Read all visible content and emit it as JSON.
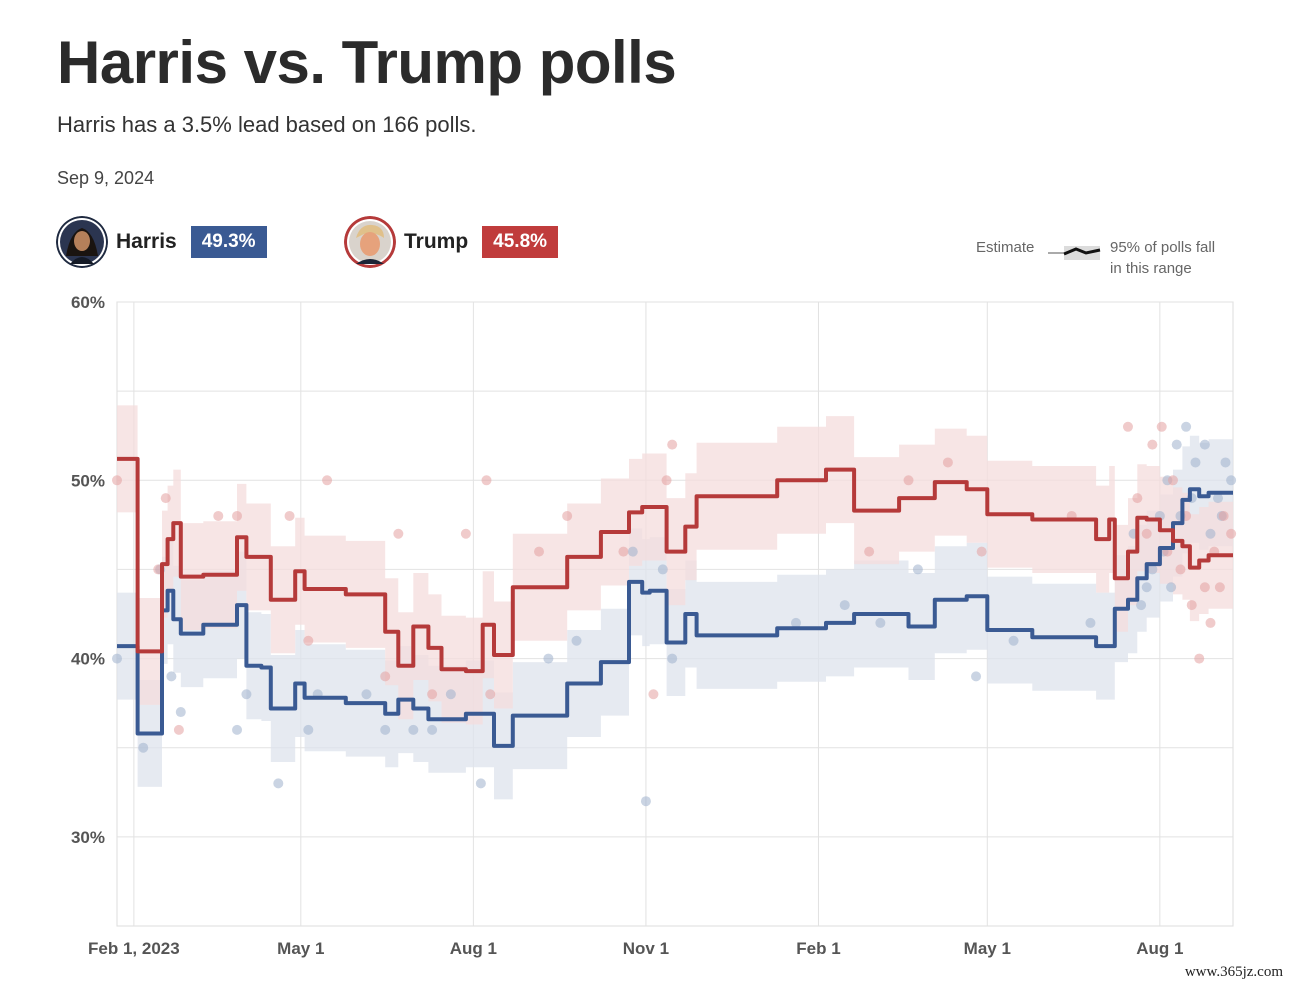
{
  "header": {
    "title": "Harris vs. Trump polls",
    "subtitle": "Harris has a 3.5% lead based on 166 polls.",
    "date": "Sep 9, 2024"
  },
  "candidates": [
    {
      "name": "Harris",
      "value": "49.3%",
      "color": "#3a5a93"
    },
    {
      "name": "Trump",
      "value": "45.8%",
      "color": "#b53a3a"
    }
  ],
  "legend": {
    "estimate_label": "Estimate",
    "range_label_1": "95% of polls fall",
    "range_label_2": "in this range"
  },
  "watermark": "www.365jz.com",
  "chart_data": {
    "type": "line",
    "title": "Harris vs. Trump polls",
    "ylim": [
      25,
      60
    ],
    "yticks": [
      30,
      40,
      50,
      60
    ],
    "ytick_labels": [
      "30%",
      "40%",
      "50%",
      "60%"
    ],
    "xlim": [
      "2023-01-23",
      "2024-09-09"
    ],
    "xticks": [
      "2023-02-01",
      "2023-05-01",
      "2023-08-01",
      "2023-11-01",
      "2024-02-01",
      "2024-05-01",
      "2024-08-01"
    ],
    "xtick_labels": [
      "Feb 1, 2023",
      "May 1",
      "Aug 1",
      "Nov 1",
      "Feb 1",
      "May 1",
      "Aug 1"
    ],
    "grid": true,
    "series": [
      {
        "name": "Harris",
        "color": "#3a5a93",
        "band_color": "#dde3ec",
        "points": [
          [
            "2023-01-23",
            40.7
          ],
          [
            "2023-01-31",
            40.7
          ],
          [
            "2023-02-03",
            35.8
          ],
          [
            "2023-02-12",
            35.8
          ],
          [
            "2023-02-16",
            42.7
          ],
          [
            "2023-02-19",
            43.8
          ],
          [
            "2023-02-22",
            42.2
          ],
          [
            "2023-02-26",
            41.4
          ],
          [
            "2023-03-10",
            41.9
          ],
          [
            "2023-03-20",
            41.9
          ],
          [
            "2023-03-28",
            43.0
          ],
          [
            "2023-04-02",
            39.6
          ],
          [
            "2023-04-10",
            39.5
          ],
          [
            "2023-04-15",
            37.2
          ],
          [
            "2023-04-25",
            37.2
          ],
          [
            "2023-04-28",
            38.6
          ],
          [
            "2023-05-03",
            37.8
          ],
          [
            "2023-05-20",
            37.8
          ],
          [
            "2023-05-25",
            37.5
          ],
          [
            "2023-06-10",
            37.5
          ],
          [
            "2023-06-15",
            36.9
          ],
          [
            "2023-06-22",
            37.7
          ],
          [
            "2023-06-30",
            37.2
          ],
          [
            "2023-07-08",
            36.6
          ],
          [
            "2023-07-15",
            36.6
          ],
          [
            "2023-07-28",
            36.9
          ],
          [
            "2023-08-06",
            36.9
          ],
          [
            "2023-08-12",
            35.1
          ],
          [
            "2023-08-20",
            35.1
          ],
          [
            "2023-08-22",
            36.8
          ],
          [
            "2023-09-15",
            36.8
          ],
          [
            "2023-09-20",
            38.6
          ],
          [
            "2023-09-28",
            38.6
          ],
          [
            "2023-10-08",
            39.8
          ],
          [
            "2023-10-20",
            39.8
          ],
          [
            "2023-10-23",
            44.3
          ],
          [
            "2023-10-30",
            43.7
          ],
          [
            "2023-11-03",
            43.8
          ],
          [
            "2023-11-08",
            43.8
          ],
          [
            "2023-11-12",
            40.9
          ],
          [
            "2023-11-18",
            40.9
          ],
          [
            "2023-11-22",
            42.5
          ],
          [
            "2023-11-28",
            41.3
          ],
          [
            "2024-01-10",
            41.7
          ],
          [
            "2024-02-01",
            41.7
          ],
          [
            "2024-02-05",
            42.0
          ],
          [
            "2024-02-15",
            42.0
          ],
          [
            "2024-02-20",
            42.5
          ],
          [
            "2024-03-10",
            42.5
          ],
          [
            "2024-03-15",
            42.5
          ],
          [
            "2024-03-20",
            41.8
          ],
          [
            "2024-03-28",
            41.8
          ],
          [
            "2024-04-03",
            43.3
          ],
          [
            "2024-04-15",
            43.3
          ],
          [
            "2024-04-20",
            43.5
          ],
          [
            "2024-04-28",
            43.5
          ],
          [
            "2024-05-01",
            41.6
          ],
          [
            "2024-05-20",
            41.6
          ],
          [
            "2024-05-25",
            41.2
          ],
          [
            "2024-06-25",
            41.2
          ],
          [
            "2024-06-28",
            40.7
          ],
          [
            "2024-07-05",
            40.7
          ],
          [
            "2024-07-08",
            42.8
          ],
          [
            "2024-07-15",
            43.3
          ],
          [
            "2024-07-20",
            44.5
          ],
          [
            "2024-07-25",
            45.3
          ],
          [
            "2024-08-01",
            46.2
          ],
          [
            "2024-08-08",
            47.6
          ],
          [
            "2024-08-13",
            48.9
          ],
          [
            "2024-08-17",
            49.5
          ],
          [
            "2024-08-22",
            49.1
          ],
          [
            "2024-08-27",
            49.3
          ],
          [
            "2024-09-09",
            49.3
          ]
        ],
        "band_halfwidth": 3.0
      },
      {
        "name": "Trump",
        "color": "#b53a3a",
        "band_color": "#f4dcdc",
        "points": [
          [
            "2023-01-23",
            51.2
          ],
          [
            "2023-01-31",
            51.2
          ],
          [
            "2023-02-03",
            40.4
          ],
          [
            "2023-02-12",
            40.4
          ],
          [
            "2023-02-16",
            45.3
          ],
          [
            "2023-02-19",
            46.7
          ],
          [
            "2023-02-22",
            47.6
          ],
          [
            "2023-02-26",
            44.6
          ],
          [
            "2023-03-10",
            44.7
          ],
          [
            "2023-03-20",
            44.7
          ],
          [
            "2023-03-28",
            46.8
          ],
          [
            "2023-04-02",
            45.7
          ],
          [
            "2023-04-10",
            45.7
          ],
          [
            "2023-04-15",
            43.3
          ],
          [
            "2023-04-25",
            43.3
          ],
          [
            "2023-04-28",
            44.9
          ],
          [
            "2023-05-03",
            43.9
          ],
          [
            "2023-05-20",
            43.9
          ],
          [
            "2023-05-25",
            43.6
          ],
          [
            "2023-06-10",
            43.6
          ],
          [
            "2023-06-15",
            41.5
          ],
          [
            "2023-06-22",
            39.6
          ],
          [
            "2023-06-30",
            41.8
          ],
          [
            "2023-07-08",
            40.6
          ],
          [
            "2023-07-15",
            39.4
          ],
          [
            "2023-07-28",
            39.3
          ],
          [
            "2023-08-06",
            41.9
          ],
          [
            "2023-08-12",
            40.2
          ],
          [
            "2023-08-20",
            40.2
          ],
          [
            "2023-08-22",
            44.0
          ],
          [
            "2023-09-15",
            44.0
          ],
          [
            "2023-09-20",
            45.7
          ],
          [
            "2023-09-28",
            45.7
          ],
          [
            "2023-10-08",
            47.1
          ],
          [
            "2023-10-20",
            47.1
          ],
          [
            "2023-10-23",
            48.2
          ],
          [
            "2023-10-30",
            48.5
          ],
          [
            "2023-11-03",
            48.5
          ],
          [
            "2023-11-08",
            48.5
          ],
          [
            "2023-11-12",
            46.0
          ],
          [
            "2023-11-18",
            46.0
          ],
          [
            "2023-11-22",
            47.4
          ],
          [
            "2023-11-28",
            49.1
          ],
          [
            "2024-01-10",
            50.0
          ],
          [
            "2024-02-01",
            50.0
          ],
          [
            "2024-02-05",
            50.6
          ],
          [
            "2024-02-15",
            50.6
          ],
          [
            "2024-02-20",
            48.3
          ],
          [
            "2024-03-10",
            48.3
          ],
          [
            "2024-03-15",
            49.0
          ],
          [
            "2024-03-20",
            49.0
          ],
          [
            "2024-03-28",
            49.0
          ],
          [
            "2024-04-03",
            49.9
          ],
          [
            "2024-04-15",
            49.9
          ],
          [
            "2024-04-20",
            49.5
          ],
          [
            "2024-04-28",
            49.5
          ],
          [
            "2024-05-01",
            48.1
          ],
          [
            "2024-05-20",
            48.1
          ],
          [
            "2024-05-25",
            47.8
          ],
          [
            "2024-06-25",
            47.8
          ],
          [
            "2024-06-28",
            46.7
          ],
          [
            "2024-07-05",
            47.8
          ],
          [
            "2024-07-08",
            44.5
          ],
          [
            "2024-07-15",
            46.0
          ],
          [
            "2024-07-20",
            47.9
          ],
          [
            "2024-07-25",
            47.8
          ],
          [
            "2024-08-01",
            47.2
          ],
          [
            "2024-08-08",
            46.6
          ],
          [
            "2024-08-13",
            46.3
          ],
          [
            "2024-08-17",
            45.1
          ],
          [
            "2024-08-22",
            45.5
          ],
          [
            "2024-08-27",
            45.8
          ],
          [
            "2024-09-09",
            45.8
          ]
        ],
        "band_halfwidth": 3.0
      }
    ],
    "polls": {
      "Harris": [
        [
          "2023-01-23",
          40
        ],
        [
          "2023-02-06",
          35
        ],
        [
          "2023-02-15",
          45
        ],
        [
          "2023-02-21",
          39
        ],
        [
          "2023-02-26",
          37
        ],
        [
          "2023-03-28",
          36
        ],
        [
          "2023-04-02",
          38
        ],
        [
          "2023-04-19",
          33
        ],
        [
          "2023-05-05",
          36
        ],
        [
          "2023-05-10",
          38
        ],
        [
          "2023-06-05",
          38
        ],
        [
          "2023-06-15",
          36
        ],
        [
          "2023-06-30",
          36
        ],
        [
          "2023-07-10",
          36
        ],
        [
          "2023-07-20",
          38
        ],
        [
          "2023-08-05",
          33
        ],
        [
          "2023-09-10",
          40
        ],
        [
          "2023-09-25",
          41
        ],
        [
          "2023-10-25",
          46
        ],
        [
          "2023-11-01",
          32
        ],
        [
          "2023-11-10",
          45
        ],
        [
          "2023-11-15",
          40
        ],
        [
          "2024-01-20",
          42
        ],
        [
          "2024-02-15",
          43
        ],
        [
          "2024-03-05",
          42
        ],
        [
          "2024-03-25",
          45
        ],
        [
          "2024-04-25",
          39
        ],
        [
          "2024-05-15",
          41
        ],
        [
          "2024-06-25",
          42
        ],
        [
          "2024-07-18",
          47
        ],
        [
          "2024-07-25",
          44
        ],
        [
          "2024-08-01",
          48
        ],
        [
          "2024-08-05",
          50
        ],
        [
          "2024-08-10",
          52
        ],
        [
          "2024-08-15",
          53
        ],
        [
          "2024-08-20",
          51
        ],
        [
          "2024-08-25",
          52
        ],
        [
          "2024-09-01",
          49
        ],
        [
          "2024-09-05",
          51
        ],
        [
          "2024-09-08",
          50
        ],
        [
          "2024-07-28",
          45
        ],
        [
          "2024-08-03",
          46
        ],
        [
          "2024-08-12",
          48
        ],
        [
          "2024-08-18",
          49
        ],
        [
          "2024-08-28",
          47
        ],
        [
          "2024-09-03",
          48
        ],
        [
          "2024-07-22",
          43
        ],
        [
          "2024-08-07",
          44
        ]
      ],
      "Trump": [
        [
          "2023-01-23",
          50
        ],
        [
          "2023-02-14",
          45
        ],
        [
          "2023-02-18",
          49
        ],
        [
          "2023-02-25",
          36
        ],
        [
          "2023-03-18",
          48
        ],
        [
          "2023-03-28",
          48
        ],
        [
          "2023-04-25",
          48
        ],
        [
          "2023-05-05",
          41
        ],
        [
          "2023-05-15",
          50
        ],
        [
          "2023-06-15",
          39
        ],
        [
          "2023-06-22",
          47
        ],
        [
          "2023-07-10",
          38
        ],
        [
          "2023-07-28",
          47
        ],
        [
          "2023-08-08",
          50
        ],
        [
          "2023-08-10",
          38
        ],
        [
          "2023-09-05",
          46
        ],
        [
          "2023-09-20",
          48
        ],
        [
          "2023-10-20",
          46
        ],
        [
          "2023-11-05",
          38
        ],
        [
          "2023-11-12",
          50
        ],
        [
          "2023-11-15",
          52
        ],
        [
          "2024-02-28",
          46
        ],
        [
          "2024-03-20",
          50
        ],
        [
          "2024-04-10",
          51
        ],
        [
          "2024-04-28",
          46
        ],
        [
          "2024-06-15",
          48
        ],
        [
          "2024-07-15",
          53
        ],
        [
          "2024-07-20",
          49
        ],
        [
          "2024-07-28",
          52
        ],
        [
          "2024-08-02",
          53
        ],
        [
          "2024-08-08",
          50
        ],
        [
          "2024-08-12",
          45
        ],
        [
          "2024-08-18",
          43
        ],
        [
          "2024-08-22",
          40
        ],
        [
          "2024-08-25",
          44
        ],
        [
          "2024-08-30",
          46
        ],
        [
          "2024-09-04",
          48
        ],
        [
          "2024-09-08",
          47
        ],
        [
          "2024-07-25",
          47
        ],
        [
          "2024-08-05",
          46
        ],
        [
          "2024-08-15",
          48
        ],
        [
          "2024-08-28",
          42
        ],
        [
          "2024-09-02",
          44
        ]
      ]
    }
  }
}
